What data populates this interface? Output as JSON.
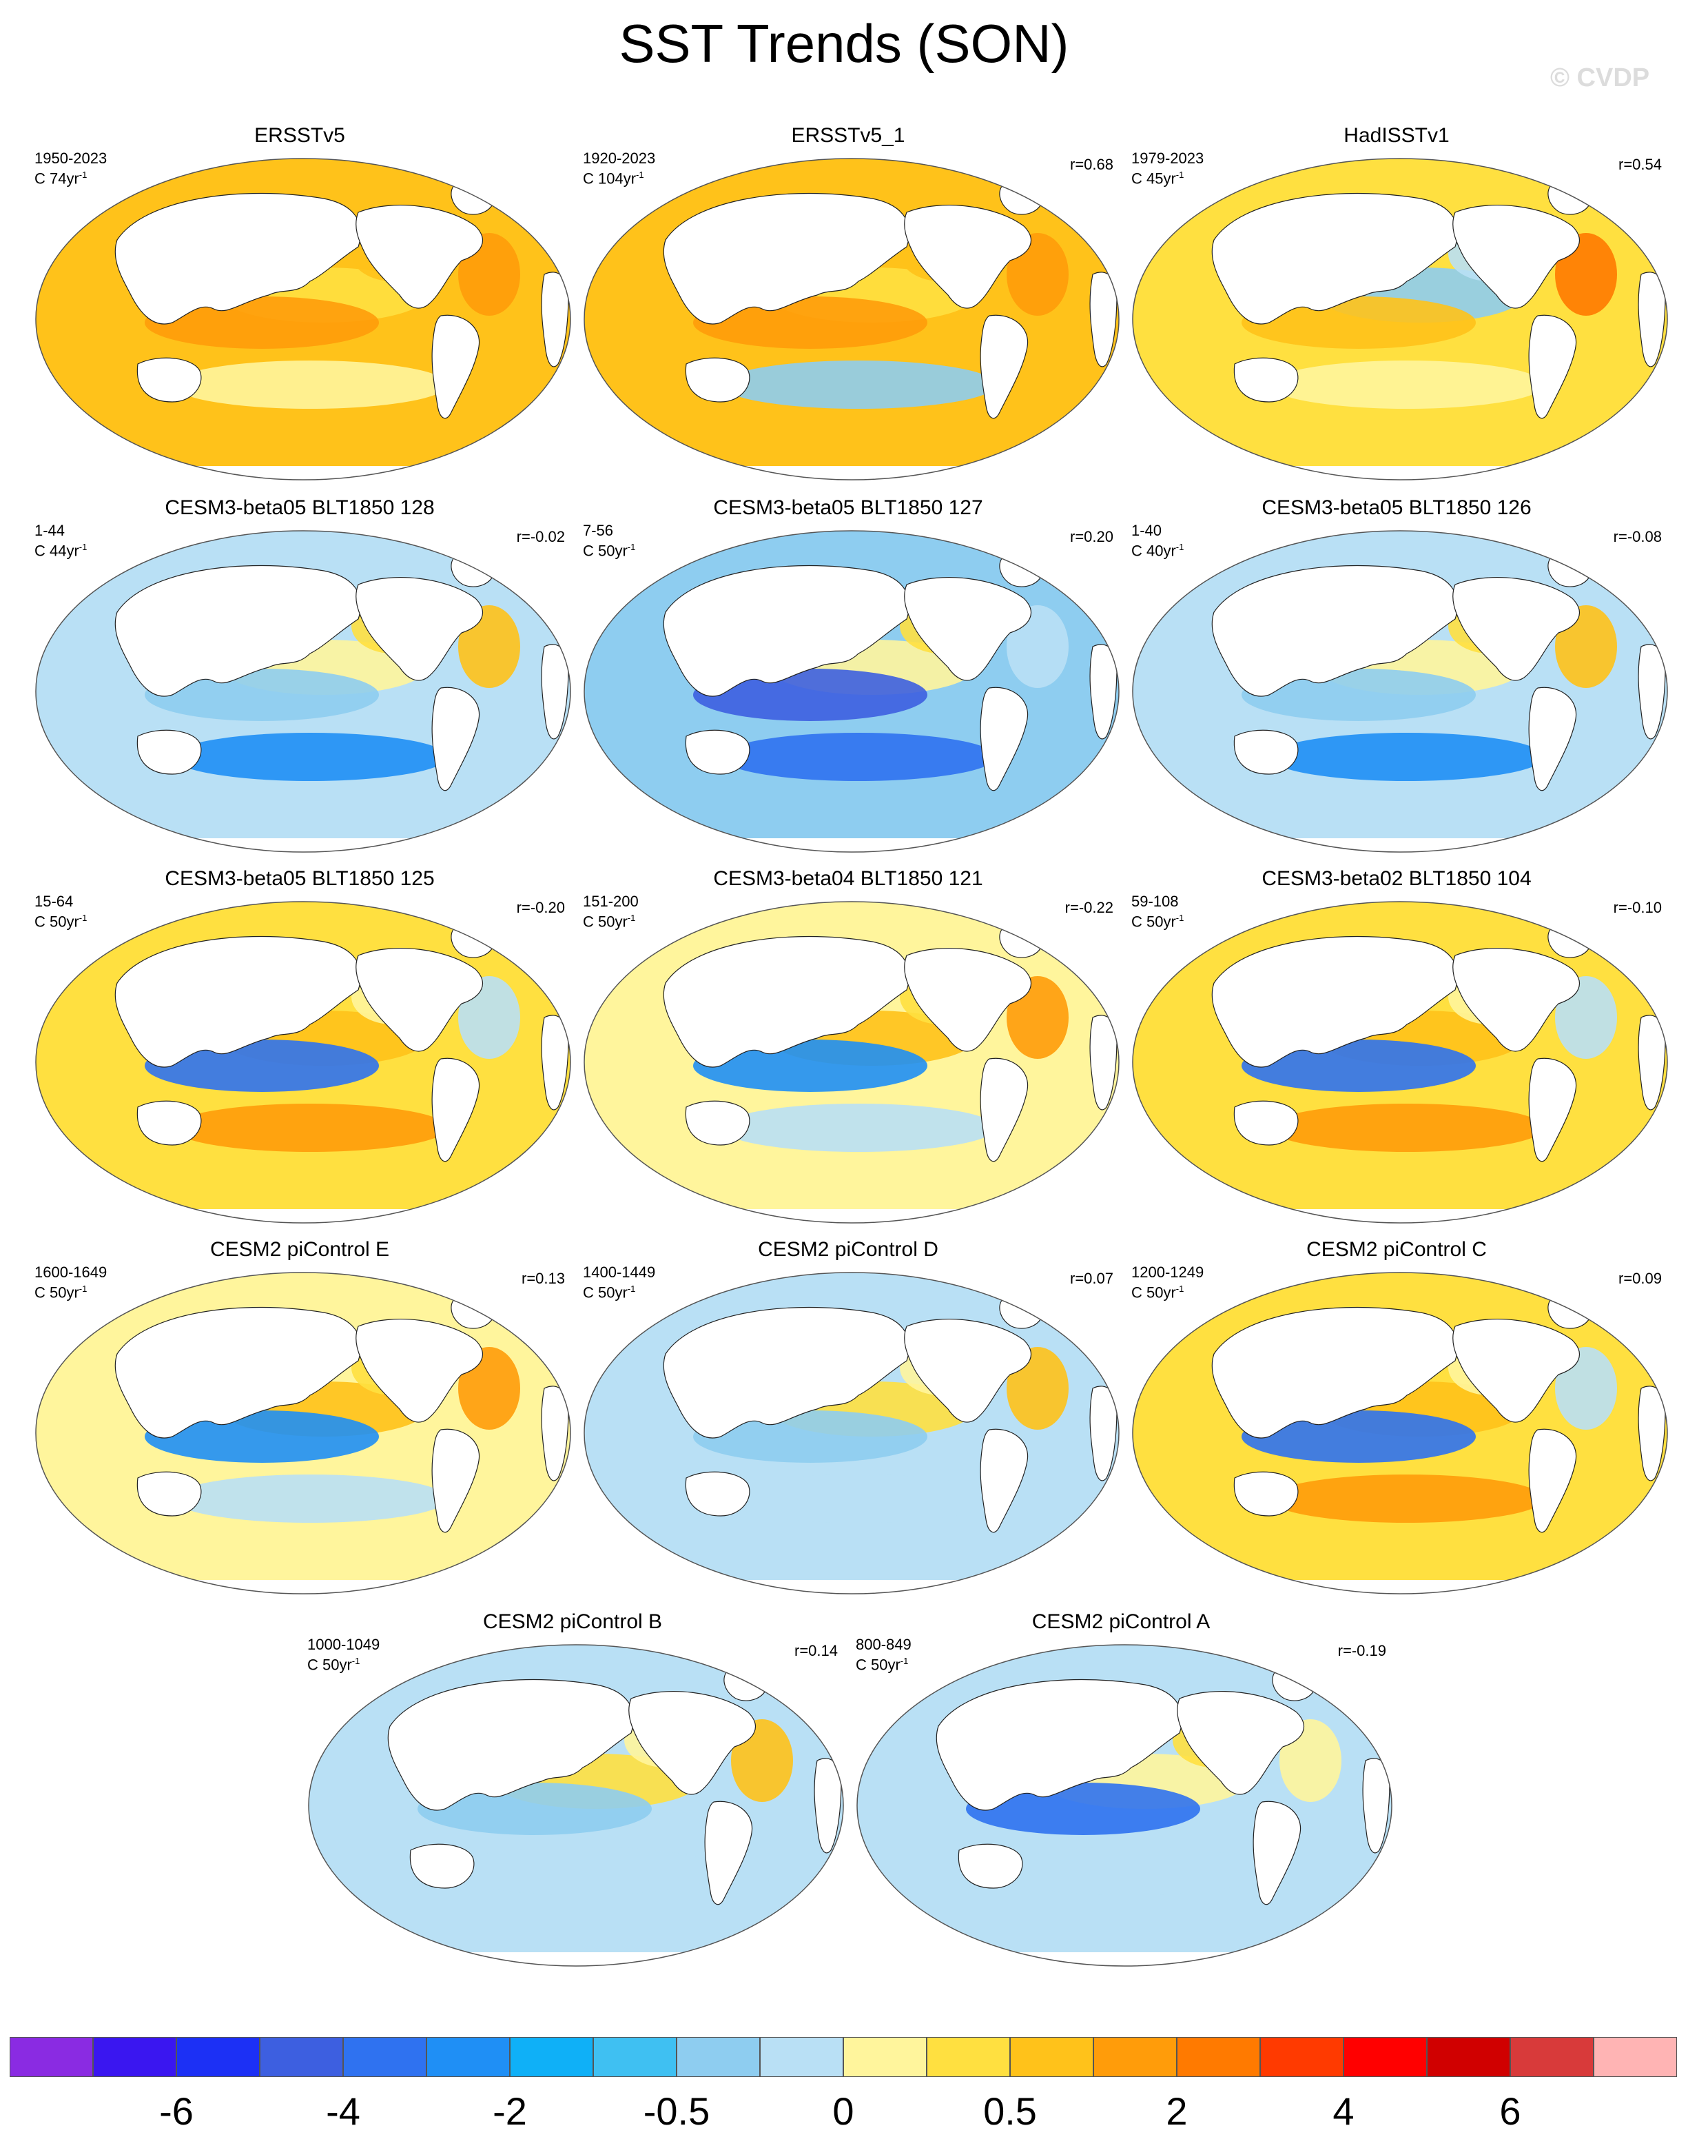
{
  "figure": {
    "title": "SST Trends (SON)",
    "watermark": "© CVDP"
  },
  "panels": [
    {
      "title": "ERSSTv5",
      "years": "1950-2023",
      "trend_len": "74",
      "corr": "",
      "scheme": "obs"
    },
    {
      "title": "ERSSTv5_1",
      "years": "1920-2023",
      "trend_len": "104",
      "corr": "r=0.68",
      "scheme": "obs2"
    },
    {
      "title": "HadISSTv1",
      "years": "1979-2023",
      "trend_len": "45",
      "corr": "r=0.54",
      "scheme": "obs3"
    },
    {
      "title": "CESM3-beta05 BLT1850 128",
      "years": "1-44",
      "trend_len": "44",
      "corr": "r=-0.02",
      "scheme": "cool"
    },
    {
      "title": "CESM3-beta05 BLT1850 127",
      "years": "7-56",
      "trend_len": "50",
      "corr": "r=0.20",
      "scheme": "cool2"
    },
    {
      "title": "CESM3-beta05 BLT1850 126",
      "years": "1-40",
      "trend_len": "40",
      "corr": "r=-0.08",
      "scheme": "cool"
    },
    {
      "title": "CESM3-beta05 BLT1850 125",
      "years": "15-64",
      "trend_len": "50",
      "corr": "r=-0.20",
      "scheme": "mix"
    },
    {
      "title": "CESM3-beta04 BLT1850 121",
      "years": "151-200",
      "trend_len": "50",
      "corr": "r=-0.22",
      "scheme": "mix2"
    },
    {
      "title": "CESM3-beta02 BLT1850 104",
      "years": "59-108",
      "trend_len": "50",
      "corr": "r=-0.10",
      "scheme": "mix"
    },
    {
      "title": "CESM2 piControl E",
      "years": "1600-1649",
      "trend_len": "50",
      "corr": "r=0.13",
      "scheme": "mix2"
    },
    {
      "title": "CESM2 piControl D",
      "years": "1400-1449",
      "trend_len": "50",
      "corr": "r=0.07",
      "scheme": "neutral"
    },
    {
      "title": "CESM2 piControl C",
      "years": "1200-1249",
      "trend_len": "50",
      "corr": "r=0.09",
      "scheme": "mix"
    },
    {
      "title": "CESM2 piControl B",
      "years": "1000-1049",
      "trend_len": "50",
      "corr": "r=0.14",
      "scheme": "neutral"
    },
    {
      "title": "CESM2 piControl A",
      "years": "800-849",
      "trend_len": "50",
      "corr": "r=-0.19",
      "scheme": "neutral2"
    }
  ],
  "unit_prefix": "C ",
  "unit_suffix": "yr",
  "unit_exp": "-1",
  "colorbar": {
    "colors": [
      "#8a2be2",
      "#3a16f0",
      "#1c30f5",
      "#3d5fe0",
      "#2f72f0",
      "#1f8ff5",
      "#0fb0f7",
      "#3fc0f2",
      "#8ecdf0",
      "#b9e0f5",
      "#fff59c",
      "#ffe040",
      "#ffc21a",
      "#ff9c0a",
      "#ff7a00",
      "#ff3a00",
      "#ff0000",
      "#d00000",
      "#d83a3a",
      "#ffb4b4"
    ],
    "labels": [
      "-6",
      "-4",
      "-2",
      "-0.5",
      "0",
      "0.5",
      "2",
      "4",
      "6"
    ]
  },
  "legend": {
    "tick_labels": [
      "-6",
      "-4",
      "-2",
      "-0.5",
      "0",
      "0.5",
      "2",
      "4",
      "6"
    ]
  }
}
